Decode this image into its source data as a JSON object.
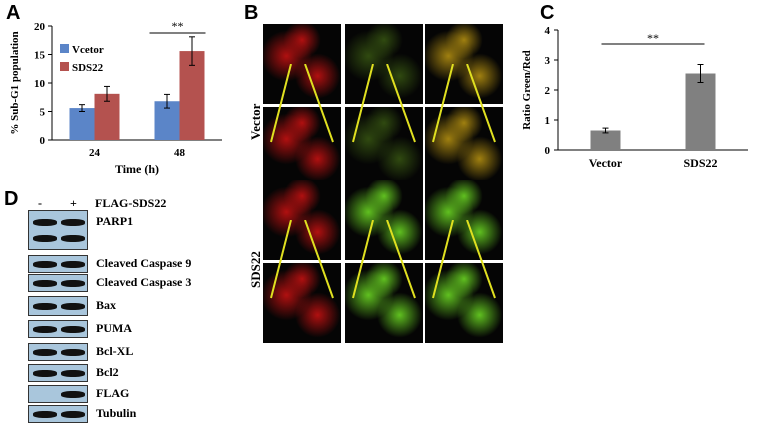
{
  "panels": {
    "A": "A",
    "B": "B",
    "C": "C",
    "D": "D"
  },
  "chart_data": [
    {
      "type": "bar",
      "panel": "A",
      "categories": [
        "24",
        "48"
      ],
      "series": [
        {
          "name": "Vcetor",
          "values": [
            5.6,
            6.8
          ],
          "errors": [
            0.6,
            1.2
          ],
          "color": "#5b85c8"
        },
        {
          "name": "SDS22",
          "values": [
            8.1,
            15.6
          ],
          "errors": [
            1.3,
            2.5
          ],
          "color": "#b4524f"
        }
      ],
      "xlabel": "Time (h)",
      "ylabel": "% Sub-G1 population",
      "ylim": [
        0,
        20
      ],
      "yticks": [
        0,
        5,
        10,
        15,
        20
      ],
      "legend": "top-left",
      "significance": "**"
    },
    {
      "type": "bar",
      "panel": "C",
      "categories": [
        "Vector",
        "SDS22"
      ],
      "values": [
        0.65,
        2.55
      ],
      "errors": [
        0.08,
        0.3
      ],
      "color": "#808080",
      "ylabel": "Ratio Green/Red",
      "ylim": [
        0,
        4
      ],
      "yticks": [
        0,
        1,
        2,
        3,
        4
      ],
      "significance": "**"
    }
  ],
  "microscopy": {
    "row_labels": [
      "Vector",
      "SDS22"
    ]
  },
  "western_blot": {
    "lane_labels": [
      "-",
      "+"
    ],
    "header": "FLAG-SDS22",
    "bands": [
      "PARP1",
      "Cleaved Caspase 9",
      "Cleaved Caspase 3",
      "Bax",
      "PUMA",
      "Bcl-XL",
      "Bcl2",
      "FLAG",
      "Tubulin"
    ]
  }
}
